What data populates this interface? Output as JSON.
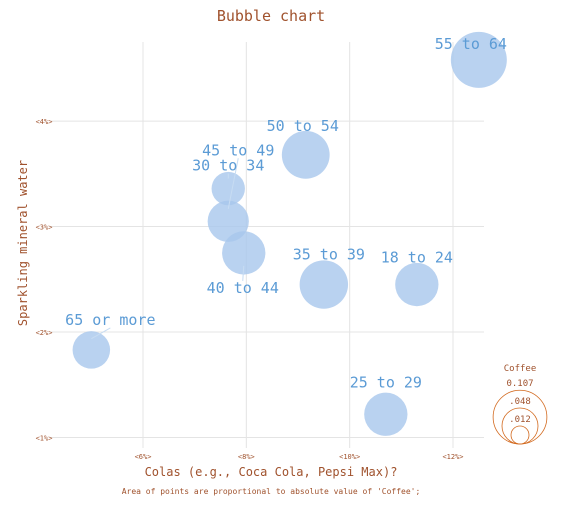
{
  "chart_data": {
    "type": "scatter",
    "subtype": "bubble",
    "title": "Bubble chart",
    "xlabel": "Colas (e.g., Coca Cola, Pepsi Max)?",
    "ylabel": "Sparkling mineral water",
    "footnote": "Area of points are proportional to absolute value of 'Coffee';",
    "xlim": [
      4.2,
      12.6
    ],
    "ylim": [
      0.9,
      4.75
    ],
    "x_ticks": [
      6,
      8,
      10,
      12
    ],
    "x_tick_labels": [
      "<6%>",
      "<8%>",
      "<10%>",
      "<12%>"
    ],
    "y_ticks": [
      1,
      2,
      3,
      4
    ],
    "y_tick_labels": [
      "<1%>",
      "<2%>",
      "<3%>",
      "<4%>"
    ],
    "grid": true,
    "size_variable": "Coffee",
    "points": [
      {
        "label": "55 to 64",
        "x": 12.5,
        "y": 4.58,
        "size": 0.107
      },
      {
        "label": "50 to 54",
        "x": 9.15,
        "y": 3.68,
        "size": 0.078
      },
      {
        "label": "45 to 49",
        "x": 7.65,
        "y": 3.05,
        "size": 0.058
      },
      {
        "label": "30 to 34",
        "x": 7.65,
        "y": 3.36,
        "size": 0.038
      },
      {
        "label": "40 to 44",
        "x": 7.95,
        "y": 2.75,
        "size": 0.064
      },
      {
        "label": "35 to 39",
        "x": 9.5,
        "y": 2.45,
        "size": 0.08
      },
      {
        "label": "18 to 24",
        "x": 11.3,
        "y": 2.45,
        "size": 0.064
      },
      {
        "label": "65 or more",
        "x": 5.0,
        "y": 1.83,
        "size": 0.048
      },
      {
        "label": "25 to 29",
        "x": 10.7,
        "y": 1.22,
        "size": 0.064
      }
    ],
    "legend": {
      "title": "Coffee",
      "placement": "right",
      "values": [
        0.107,
        0.048,
        0.012
      ],
      "value_labels": [
        "0.107",
        ".048",
        ".012"
      ]
    }
  }
}
